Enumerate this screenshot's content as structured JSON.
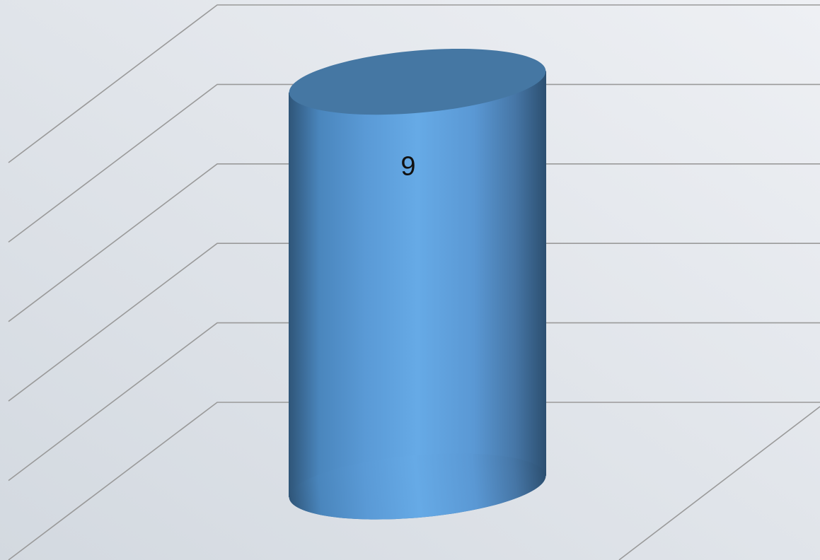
{
  "chart_data": {
    "type": "cylinder",
    "categories": [
      null
    ],
    "values": [
      9
    ],
    "color": "#5b9bd5",
    "ylim": [
      0,
      10
    ],
    "yticks": [
      0,
      2,
      4,
      6,
      8,
      10
    ],
    "grid": true
  }
}
